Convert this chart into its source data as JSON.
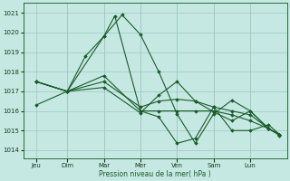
{
  "background_color": "#c5e8e2",
  "plot_bg_color": "#c5e8e2",
  "line_color": "#1a5c2a",
  "grid_color": "#9dc8c2",
  "axis_label": "Pression niveau de la mer( hPa )",
  "ylabel_values": [
    1014,
    1015,
    1016,
    1017,
    1018,
    1019,
    1020,
    1021
  ],
  "xlabels": [
    "Jeu",
    "Dim",
    "Mar",
    "Mer",
    "Ven",
    "Sam",
    "Lun"
  ],
  "ylim": [
    1013.6,
    1021.5
  ],
  "xlim": [
    -0.2,
    7.0
  ],
  "lines_x": [
    [
      0.15,
      1.0,
      2.0,
      2.5,
      3.0,
      3.5,
      4.0,
      4.5,
      5.0,
      5.5,
      6.0,
      6.5,
      6.8
    ],
    [
      0.15,
      1.0,
      1.5,
      2.0,
      2.3,
      3.0,
      3.5,
      4.0,
      4.5,
      5.0,
      5.5,
      6.0,
      6.5,
      6.8
    ],
    [
      0.15,
      1.0,
      2.0,
      3.0,
      3.5,
      4.0,
      4.5,
      5.0,
      5.5,
      6.0,
      6.5,
      6.8
    ],
    [
      0.15,
      1.0,
      2.0,
      3.0,
      3.5,
      4.0,
      4.5,
      5.0,
      5.5,
      6.0,
      6.5,
      6.8
    ],
    [
      0.15,
      1.0,
      2.0,
      3.0,
      3.5,
      4.0,
      4.5,
      5.0,
      5.5,
      6.0,
      6.5,
      6.8
    ]
  ],
  "lines_y": [
    [
      1016.3,
      1017.0,
      1019.8,
      1020.9,
      1019.9,
      1018.0,
      1015.85,
      1014.35,
      1015.85,
      1016.55,
      1016.0,
      1015.1,
      1014.8
    ],
    [
      1017.5,
      1017.0,
      1018.8,
      1019.8,
      1020.85,
      1016.0,
      1015.7,
      1014.35,
      1014.6,
      1016.2,
      1015.0,
      1015.0,
      1015.3,
      1014.8
    ],
    [
      1017.5,
      1017.0,
      1017.8,
      1016.0,
      1016.0,
      1016.0,
      1016.0,
      1016.0,
      1015.8,
      1015.5,
      1015.1,
      1014.8
    ],
    [
      1017.5,
      1017.0,
      1017.5,
      1016.2,
      1016.5,
      1016.6,
      1016.5,
      1016.2,
      1016.0,
      1015.8,
      1015.1,
      1014.8
    ],
    [
      1017.5,
      1017.0,
      1017.2,
      1015.9,
      1016.8,
      1017.5,
      1016.5,
      1015.95,
      1015.5,
      1016.0,
      1015.1,
      1014.75
    ]
  ]
}
